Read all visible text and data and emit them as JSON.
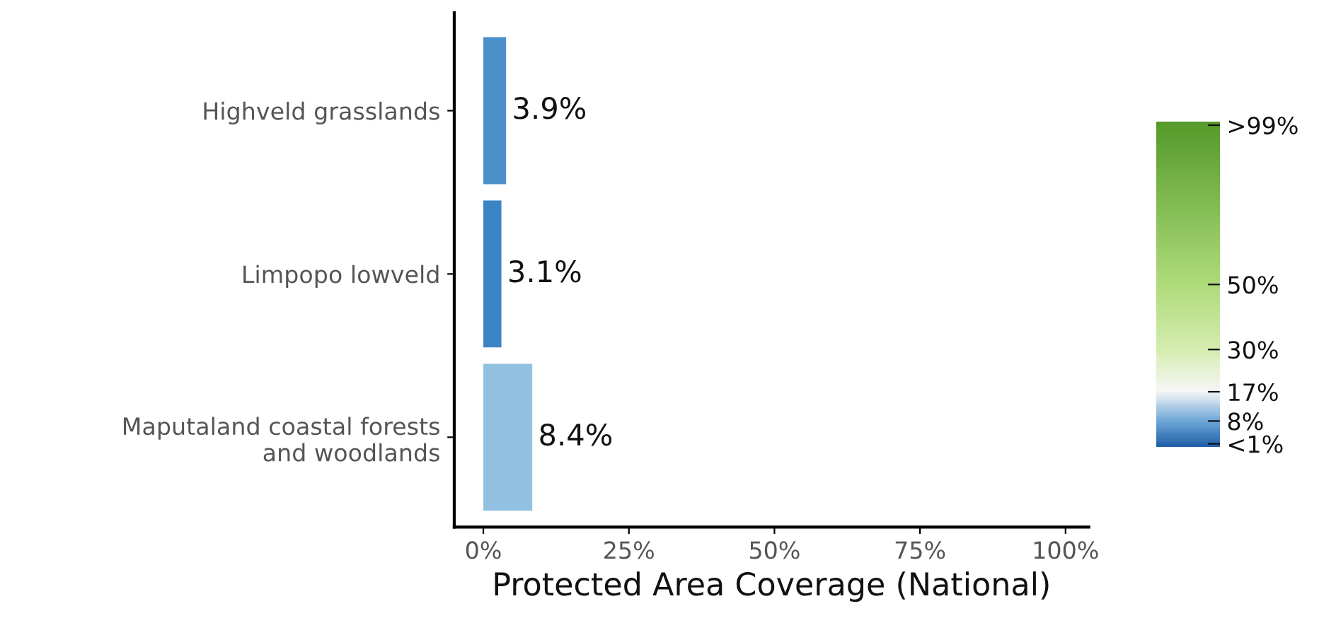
{
  "chart_data": {
    "type": "bar",
    "orientation": "horizontal",
    "categories": [
      "Highveld grasslands",
      "Limpopo lowveld",
      "Maputaland coastal forests\nand woodlands"
    ],
    "values": [
      3.9,
      3.1,
      8.4
    ],
    "colors": [
      "#4a91cb",
      "#3b84c3",
      "#91c0e1"
    ],
    "value_labels": [
      "3.9%",
      "3.1%",
      "8.4%"
    ],
    "xlabel": "Protected Area Coverage (National)",
    "xlim": [
      -5,
      104
    ],
    "xticks": [
      {
        "value": 0,
        "label": "0%"
      },
      {
        "value": 25,
        "label": "25%"
      },
      {
        "value": 50,
        "label": "50%"
      },
      {
        "value": 75,
        "label": "75%"
      },
      {
        "value": 100,
        "label": "100%"
      }
    ],
    "clim": [
      0,
      100
    ],
    "cticks": [
      {
        "value": 1,
        "label": "<1%"
      },
      {
        "value": 8,
        "label": "8%"
      },
      {
        "value": 17,
        "label": "17%"
      },
      {
        "value": 30,
        "label": "30%"
      },
      {
        "value": 50,
        "label": "50%"
      },
      {
        "value": 99,
        "label": ">99%"
      }
    ],
    "grid": false,
    "legend": false
  }
}
